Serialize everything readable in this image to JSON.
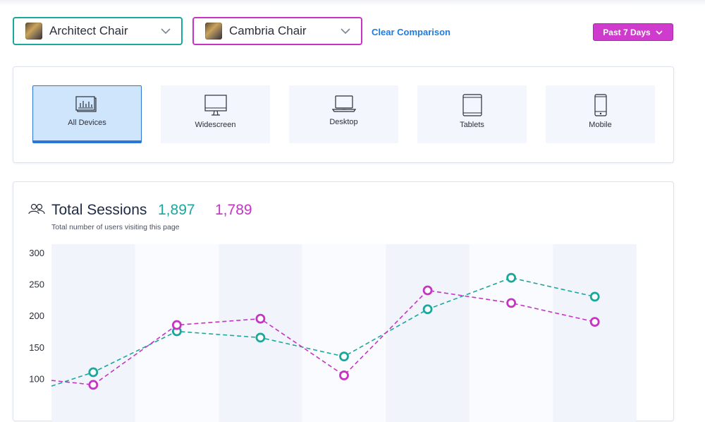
{
  "comparison": {
    "product_a": {
      "label": "Architect Chair",
      "color": "#1aa89c"
    },
    "product_b": {
      "label": "Cambria Chair",
      "color": "#c634c4"
    },
    "clear_label": "Clear Comparison"
  },
  "date_range": {
    "label": "Past 7 Days"
  },
  "devices": [
    {
      "label": "All Devices",
      "icon": "all-devices-icon",
      "active": true
    },
    {
      "label": "Widescreen",
      "icon": "widescreen-monitor-icon",
      "active": false
    },
    {
      "label": "Desktop",
      "icon": "laptop-icon",
      "active": false
    },
    {
      "label": "Tablets",
      "icon": "tablet-icon",
      "active": false
    },
    {
      "label": "Mobile",
      "icon": "mobile-phone-icon",
      "active": false
    }
  ],
  "sessions": {
    "title": "Total Sessions",
    "value_a": "1,897",
    "value_b": "1,789",
    "subtitle": "Total number of users visiting this page",
    "icon": "users-icon"
  },
  "chart_data": {
    "type": "line",
    "y_ticks": [
      "300",
      "250",
      "200",
      "150",
      "100"
    ],
    "ylim": [
      50,
      300
    ],
    "x": [
      0,
      1,
      2,
      3,
      4,
      5,
      6
    ],
    "series": [
      {
        "color": "#1aa89c",
        "values": [
          110,
          175,
          165,
          135,
          210,
          260,
          230
        ],
        "start": 88
      },
      {
        "color": "#c634c4",
        "values": [
          90,
          185,
          195,
          105,
          240,
          220,
          190
        ],
        "start": 97
      }
    ],
    "grid": true,
    "legend": "none"
  }
}
